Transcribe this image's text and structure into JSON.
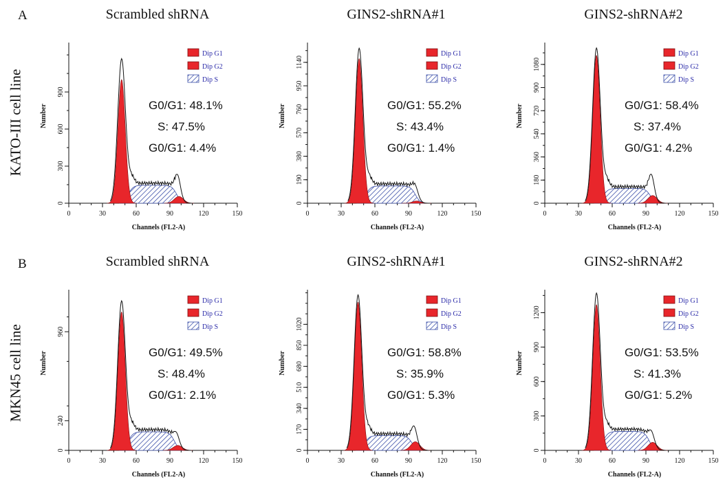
{
  "panels": {
    "a": "A",
    "b": "B"
  },
  "rows": {
    "a_label": "KATO-III cell line",
    "b_label": "MKN45 cell line"
  },
  "colors": {
    "g1": "#e8262b",
    "g2": "#e8262b",
    "s_fill": "#ffffff",
    "s_hatch": "#3b4fa8",
    "envelope": "#111111"
  },
  "chart_data": [
    {
      "type": "area",
      "row": "A",
      "title": "Scrambled shRNA",
      "xlabel": "Channels (FL2-A)",
      "ylabel": "Number",
      "xlim": [
        0,
        150
      ],
      "xticks": [
        0,
        30,
        60,
        90,
        120,
        150
      ],
      "ylim": [
        0,
        1300
      ],
      "yticks": [
        0,
        300,
        600,
        900
      ],
      "legend": [
        "Dip G1",
        "Dip G2",
        "Dip S"
      ],
      "stats": [
        "G0/G1: 48.1%",
        "S: 47.5%",
        "G0/G1: 4.4%"
      ],
      "g1_peak": {
        "x": 47,
        "y": 1000,
        "sd": 3.3
      },
      "g2_peak": {
        "x": 98,
        "y": 55,
        "sd": 4
      },
      "s_phase": {
        "start": 53,
        "end": 96,
        "level": 145,
        "ramp": 8
      },
      "envelope_peak": 1160,
      "g2_envelope_peak": 290
    },
    {
      "type": "area",
      "row": "A",
      "title": "GINS2-shRNA#1",
      "xlabel": "Channels (FL2-A)",
      "ylabel": "Number",
      "xlim": [
        0,
        150
      ],
      "xticks": [
        0,
        30,
        60,
        90,
        120,
        150
      ],
      "ylim": [
        0,
        1300
      ],
      "yticks": [
        0,
        190,
        380,
        570,
        760,
        950,
        1140
      ],
      "legend": [
        "Dip G1",
        "Dip G2",
        "Dip S"
      ],
      "stats": [
        "G0/G1: 55.2%",
        "S: 43.4%",
        "G0/G1: 1.4%"
      ],
      "g1_peak": {
        "x": 46,
        "y": 1170,
        "sd": 3.3
      },
      "g2_peak": {
        "x": 97,
        "y": 18,
        "sd": 3.5
      },
      "s_phase": {
        "start": 52,
        "end": 96,
        "level": 140,
        "ramp": 8
      },
      "envelope_peak": 1245,
      "g2_envelope_peak": 205
    },
    {
      "type": "area",
      "row": "A",
      "title": "GINS2-shRNA#2",
      "xlabel": "Channels (FL2-A)",
      "ylabel": "Number",
      "xlim": [
        0,
        150
      ],
      "xticks": [
        0,
        30,
        60,
        90,
        120,
        150
      ],
      "ylim": [
        0,
        1250
      ],
      "yticks": [
        0,
        180,
        360,
        540,
        720,
        900,
        1080
      ],
      "legend": [
        "Dip G1",
        "Dip G2",
        "Dip S"
      ],
      "stats": [
        "G0/G1: 58.4%",
        "S: 37.4%",
        "G0/G1: 4.2%"
      ],
      "g1_peak": {
        "x": 46,
        "y": 1150,
        "sd": 3.3
      },
      "g2_peak": {
        "x": 96,
        "y": 60,
        "sd": 4
      },
      "s_phase": {
        "start": 52,
        "end": 94,
        "level": 115,
        "ramp": 8
      },
      "envelope_peak": 1200,
      "g2_envelope_peak": 265
    },
    {
      "type": "area",
      "row": "B",
      "title": "Scrambled shRNA",
      "xlabel": "Channels (FL2-A)",
      "ylabel": "Number",
      "xlim": [
        0,
        150
      ],
      "xticks": [
        0,
        30,
        60,
        90,
        120,
        150
      ],
      "ylim": [
        0,
        1300
      ],
      "yticks": [
        0,
        240,
        960
      ],
      "legend": [
        "Dip G1",
        "Dip G2",
        "Dip S"
      ],
      "stats": [
        "G0/G1: 49.5%",
        "S: 48.4%",
        "G0/G1: 2.1%"
      ],
      "g1_peak": {
        "x": 47,
        "y": 1120,
        "sd": 3.3
      },
      "g2_peak": {
        "x": 97,
        "y": 40,
        "sd": 4
      },
      "s_phase": {
        "start": 53,
        "end": 94,
        "level": 150,
        "ramp": 8
      },
      "envelope_peak": 1200,
      "g2_envelope_peak": 230
    },
    {
      "type": "area",
      "row": "B",
      "title": "GINS2-shRNA#1",
      "xlabel": "Channels (FL2-A)",
      "ylabel": "Number",
      "xlim": [
        0,
        150
      ],
      "xticks": [
        0,
        30,
        60,
        90,
        120,
        150
      ],
      "ylim": [
        0,
        1300
      ],
      "yticks": [
        0,
        170,
        340,
        510,
        680,
        850,
        1020
      ],
      "legend": [
        "Dip G1",
        "Dip G2",
        "Dip S"
      ],
      "stats": [
        "G0/G1: 58.8%",
        "S: 35.9%",
        "G0/G1: 5.3%"
      ],
      "g1_peak": {
        "x": 45,
        "y": 1200,
        "sd": 3.3
      },
      "g2_peak": {
        "x": 96,
        "y": 70,
        "sd": 4
      },
      "s_phase": {
        "start": 51,
        "end": 93,
        "level": 120,
        "ramp": 8
      },
      "envelope_peak": 1250,
      "g2_envelope_peak": 250
    },
    {
      "type": "area",
      "row": "B",
      "title": "GINS2-shRNA#2",
      "xlabel": "Channels (FL2-A)",
      "ylabel": "Number",
      "xlim": [
        0,
        150
      ],
      "xticks": [
        0,
        30,
        60,
        90,
        120,
        150
      ],
      "ylim": [
        0,
        1400
      ],
      "yticks": [
        0,
        300,
        600,
        900,
        1200
      ],
      "legend": [
        "Dip G1",
        "Dip G2",
        "Dip S"
      ],
      "stats": [
        "G0/G1: 53.5%",
        "S: 41.3%",
        "G0/G1: 5.2%"
      ],
      "g1_peak": {
        "x": 46,
        "y": 1270,
        "sd": 3.3
      },
      "g2_peak": {
        "x": 96,
        "y": 70,
        "sd": 4
      },
      "s_phase": {
        "start": 52,
        "end": 93,
        "level": 165,
        "ramp": 8
      },
      "envelope_peak": 1360,
      "g2_envelope_peak": 255
    }
  ]
}
